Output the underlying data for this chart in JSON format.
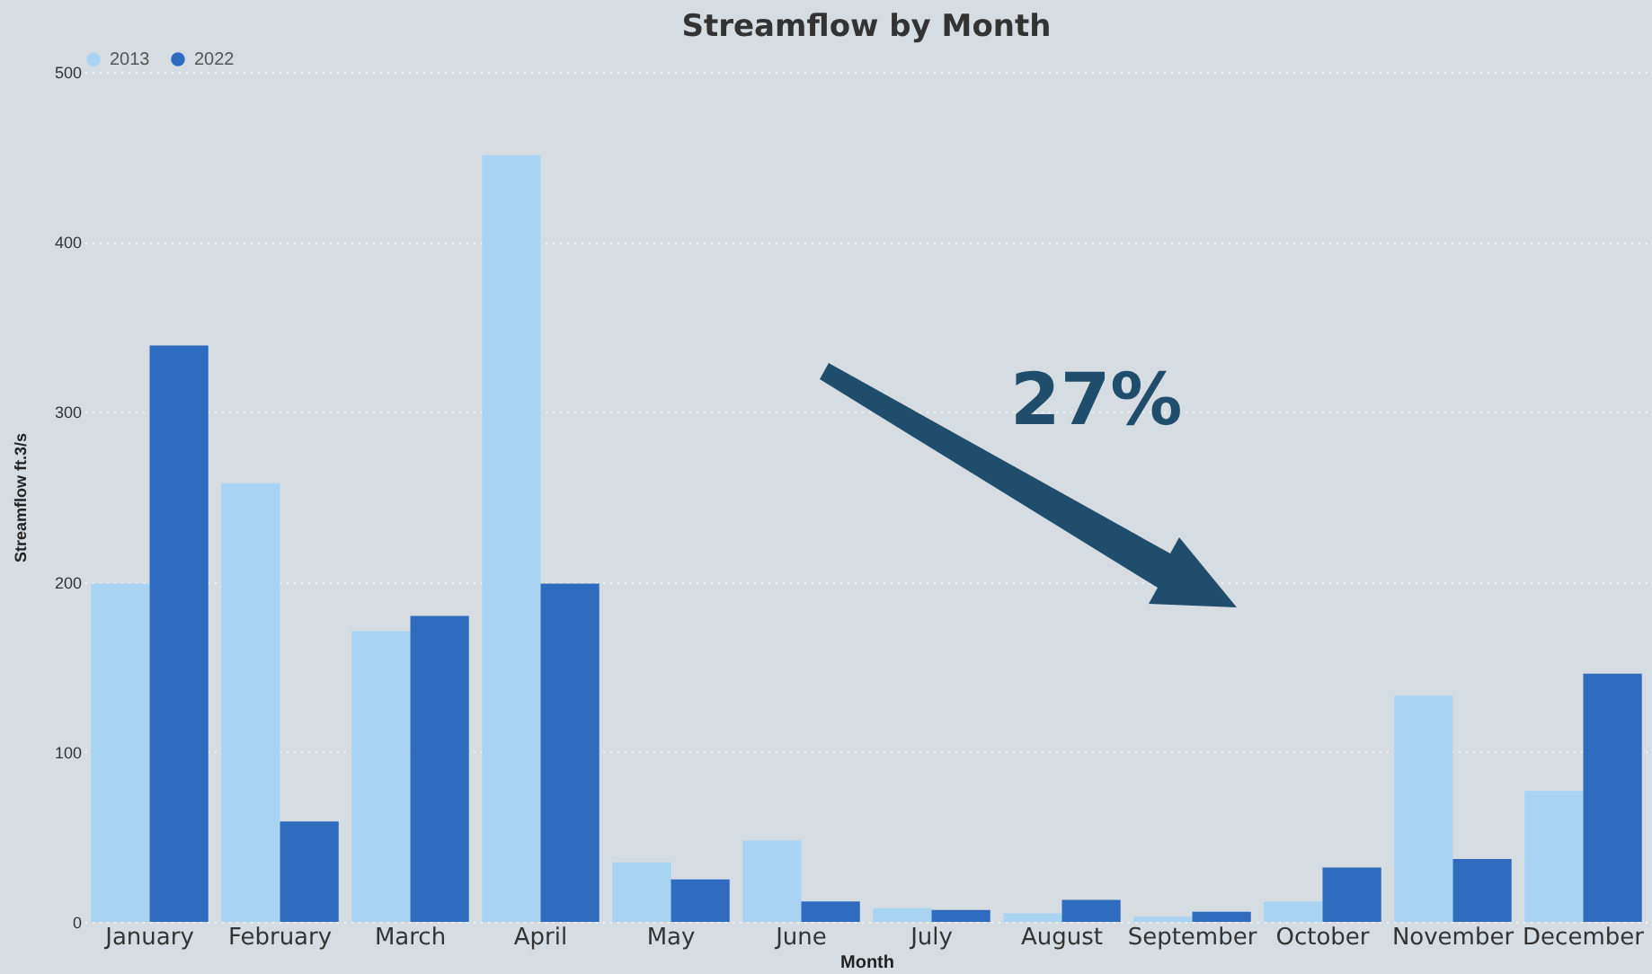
{
  "chart_data": {
    "type": "bar",
    "title": "Streamflow by Month",
    "xlabel": "Month",
    "ylabel": "Streamflow ft.3/s",
    "categories": [
      "January",
      "February",
      "March",
      "April",
      "May",
      "June",
      "July",
      "August",
      "September",
      "October",
      "November",
      "December"
    ],
    "series": [
      {
        "name": "2013",
        "color": "#a9d3f3",
        "values": [
          199,
          258,
          171,
          451,
          35,
          48,
          8,
          5,
          3,
          12,
          133,
          77
        ]
      },
      {
        "name": "2022",
        "color": "#2f6cc0",
        "values": [
          339,
          59,
          180,
          199,
          25,
          12,
          7,
          13,
          6,
          32,
          37,
          146
        ]
      }
    ],
    "ylim": [
      0,
      500
    ],
    "yticks": [
      0,
      100,
      200,
      300,
      400,
      500
    ],
    "grid": "y",
    "legend": "top",
    "annotations": [
      "27%"
    ]
  }
}
